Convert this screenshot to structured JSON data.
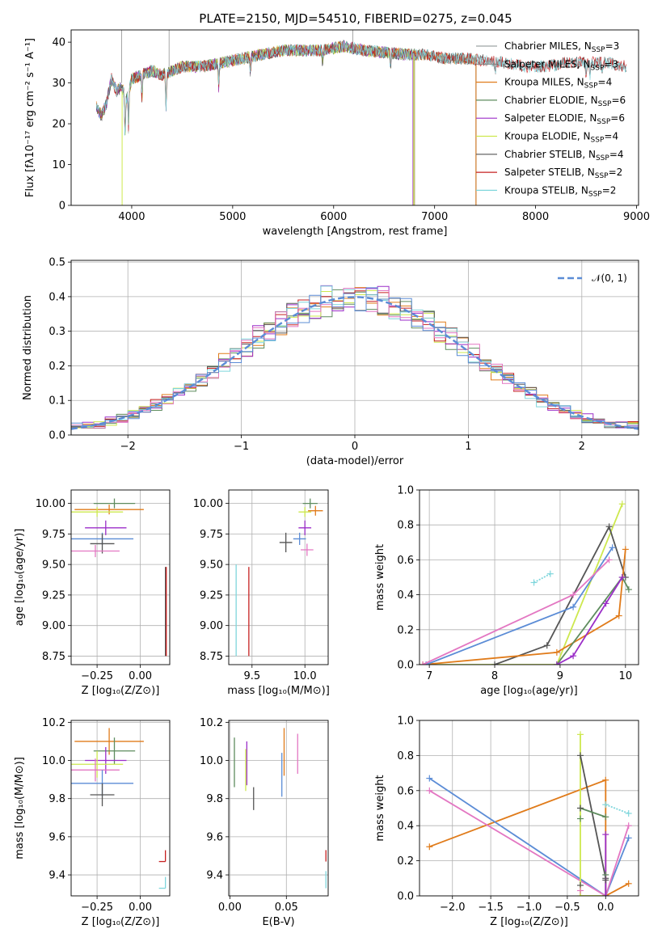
{
  "chart_data": [
    {
      "type": "line",
      "title": "PLATE=2150, MJD=54510, FIBERID=0275, z=0.045",
      "xlabel": "wavelength [Angstrom, rest frame]",
      "ylabel": "Flux [fλ10⁻¹⁷ erg cm⁻² s⁻¹ A⁻¹]",
      "xlim": [
        3400,
        9020
      ],
      "ylim": [
        0,
        43
      ],
      "xticks": [
        "4000",
        "5000",
        "6000",
        "7000",
        "8000",
        "9000"
      ],
      "yticks": [
        "0",
        "10",
        "20",
        "30",
        "40"
      ],
      "grid": false,
      "legend_position": "top-right",
      "continuum": {
        "x": [
          3650,
          3700,
          3750,
          3800,
          3850,
          3900,
          3950,
          4000,
          4100,
          4200,
          4300,
          4400,
          4500,
          4700,
          4900,
          5100,
          5300,
          5500,
          5700,
          5900,
          6100,
          6300,
          6500,
          6700,
          6900,
          7100,
          7300,
          7500,
          7700,
          7900,
          8100,
          8300,
          8500,
          8700,
          8900
        ],
        "y": [
          24,
          22,
          25,
          31,
          28,
          29,
          26,
          31,
          32,
          33,
          32,
          33,
          34,
          34,
          35,
          36,
          37,
          38,
          38,
          38,
          39,
          38,
          37.5,
          37,
          37,
          36,
          36,
          35.5,
          35,
          34,
          34,
          35,
          35,
          35,
          34
        ]
      },
      "series": [
        {
          "name": "Chabrier MILES, N_SSP=3",
          "color": "#9da5a3",
          "x_range": [
            3650,
            7410
          ]
        },
        {
          "name": "Salpeter MILES, N_SSP=3",
          "color": "#808080",
          "x_range": [
            3650,
            7410
          ]
        },
        {
          "name": "Kroupa MILES, N_SSP=4",
          "color": "#e07b1a",
          "x_range": [
            3650,
            7410
          ]
        },
        {
          "name": "Chabrier ELODIE, N_SSP=6",
          "color": "#5e8c5e",
          "x_range": [
            3650,
            6800
          ]
        },
        {
          "name": "Salpeter ELODIE, N_SSP=6",
          "color": "#9b2ec8",
          "x_range": [
            3650,
            6800
          ]
        },
        {
          "name": "Kroupa ELODIE, N_SSP=4",
          "color": "#cde84e",
          "x_range": [
            3900,
            6800
          ]
        },
        {
          "name": "Chabrier STELIB, N_SSP=4",
          "color": "#555555",
          "x_range": [
            3650,
            8900
          ]
        },
        {
          "name": "Salpeter STELIB, N_SSP=2",
          "color": "#c62020",
          "x_range": [
            3650,
            8900
          ]
        },
        {
          "name": "Kroupa STELIB, N_SSP=2",
          "color": "#7fd6dc",
          "x_range": [
            3650,
            8900
          ]
        }
      ]
    },
    {
      "type": "line",
      "title": "",
      "xlabel": "(data-model)/error",
      "ylabel": "Normed distribution",
      "xlim": [
        -2.5,
        2.5
      ],
      "ylim": [
        0,
        0.505
      ],
      "xticks": [
        "−2",
        "−1",
        "0",
        "1",
        "2"
      ],
      "yticks": [
        "0.0",
        "0.1",
        "0.2",
        "0.3",
        "0.4",
        "0.5"
      ],
      "grid": true,
      "legend_position": "top-right",
      "normal_curve": {
        "name": "𝒩(0, 1)",
        "color": "#5b8cd6",
        "mu": 0,
        "sigma": 1
      },
      "histogram_bin_width": 0.1,
      "histogram_colors": [
        "#e07b1a",
        "#5e8c5e",
        "#9b2ec8",
        "#cde84e",
        "#555555",
        "#c62020",
        "#7fd6dc",
        "#e377c2",
        "#5b8cd6"
      ]
    },
    {
      "type": "scatter",
      "xlabel": "Z [log₁₀(Z/Z⊙)]",
      "ylabel": "age  [log₁₀(age/yr)]",
      "xlim": [
        -0.4,
        0.17
      ],
      "ylim": [
        8.68,
        10.11
      ],
      "xticks": [
        "−0.25",
        "0.00"
      ],
      "yticks": [
        "8.75",
        "9.00",
        "9.25",
        "9.50",
        "9.75",
        "10.00"
      ],
      "points": [
        {
          "x": -0.15,
          "y": 10.0,
          "xerr": 0.12,
          "yerr": 0.04,
          "color": "#5e8c5e"
        },
        {
          "x": -0.18,
          "y": 9.95,
          "xerr": 0.2,
          "yerr": 0.04,
          "color": "#e07b1a"
        },
        {
          "x": -0.25,
          "y": 9.93,
          "xerr": 0.15,
          "yerr": 0.04,
          "color": "#cde84e"
        },
        {
          "x": -0.2,
          "y": 9.8,
          "xerr": 0.12,
          "yerr": 0.06,
          "color": "#9b2ec8"
        },
        {
          "x": -0.22,
          "y": 9.71,
          "xerr": 0.18,
          "yerr": 0.05,
          "color": "#5b8cd6"
        },
        {
          "x": -0.22,
          "y": 9.67,
          "xerr": 0.07,
          "yerr": 0.08,
          "color": "#555555"
        },
        {
          "x": -0.26,
          "y": 9.61,
          "xerr": 0.14,
          "yerr": 0.05,
          "color": "#e377c2"
        },
        {
          "x": 0.15,
          "y": 8.75,
          "xerr": 0.0,
          "yerr": 0.0,
          "color": "#7fd6dc"
        }
      ],
      "vlines": [
        {
          "x": 0.145,
          "y1": 8.75,
          "y2": 9.48,
          "color": "#555555"
        },
        {
          "x": 0.15,
          "y1": 8.75,
          "y2": 9.48,
          "color": "#c62020"
        }
      ]
    },
    {
      "type": "scatter",
      "xlabel": "mass [log₁₀(M/M⊙)]",
      "ylabel": "",
      "xlim": [
        9.28,
        10.22
      ],
      "ylim": [
        8.68,
        10.11
      ],
      "xticks": [
        "9.5",
        "10.0"
      ],
      "yticks": [
        "8.75",
        "9.00",
        "9.25",
        "9.50",
        "9.75",
        "10.00"
      ],
      "points": [
        {
          "x": 10.05,
          "y": 10.0,
          "xerr": 0.07,
          "yerr": 0.04,
          "color": "#5e8c5e"
        },
        {
          "x": 10.1,
          "y": 9.94,
          "xerr": 0.07,
          "yerr": 0.04,
          "color": "#e07b1a"
        },
        {
          "x": 10.0,
          "y": 9.93,
          "xerr": 0.06,
          "yerr": 0.04,
          "color": "#cde84e"
        },
        {
          "x": 10.0,
          "y": 9.8,
          "xerr": 0.06,
          "yerr": 0.06,
          "color": "#9b2ec8"
        },
        {
          "x": 9.95,
          "y": 9.71,
          "xerr": 0.06,
          "yerr": 0.05,
          "color": "#5b8cd6"
        },
        {
          "x": 9.82,
          "y": 9.68,
          "xerr": 0.06,
          "yerr": 0.08,
          "color": "#555555"
        },
        {
          "x": 10.02,
          "y": 9.62,
          "xerr": 0.06,
          "yerr": 0.05,
          "color": "#e377c2"
        }
      ],
      "vlines": [
        {
          "x": 9.35,
          "y1": 8.75,
          "y2": 9.5,
          "color": "#7fd6dc"
        },
        {
          "x": 9.47,
          "y1": 8.75,
          "y2": 9.48,
          "color": "#c62020"
        }
      ]
    },
    {
      "type": "line",
      "xlabel": "age  [log₁₀(age/yr)]",
      "ylabel": "mass weight",
      "xlim": [
        6.85,
        10.2
      ],
      "ylim": [
        0,
        1.0
      ],
      "xticks": [
        "7",
        "8",
        "9",
        "10"
      ],
      "yticks": [
        "0.0",
        "0.2",
        "0.4",
        "0.6",
        "0.8",
        "1.0"
      ],
      "grid": true,
      "series": [
        {
          "color": "#cde84e",
          "x": [
            6.9,
            8.95,
            9.95
          ],
          "y": [
            0.0,
            0.0,
            0.92
          ]
        },
        {
          "color": "#555555",
          "x": [
            8.0,
            8.8,
            9.75,
            10.0
          ],
          "y": [
            0.0,
            0.11,
            0.79,
            0.5
          ]
        },
        {
          "color": "#e07b1a",
          "x": [
            6.9,
            8.95,
            9.9,
            10.0
          ],
          "y": [
            0.0,
            0.07,
            0.28,
            0.66
          ]
        },
        {
          "color": "#5e8c5e",
          "x": [
            8.95,
            9.95,
            10.05
          ],
          "y": [
            0.0,
            0.5,
            0.43
          ]
        },
        {
          "color": "#9b2ec8",
          "x": [
            8.95,
            9.2,
            9.7,
            9.95
          ],
          "y": [
            0.0,
            0.05,
            0.35,
            0.5
          ]
        },
        {
          "color": "#5b8cd6",
          "x": [
            6.95,
            9.2,
            9.8
          ],
          "y": [
            0.0,
            0.33,
            0.67
          ]
        },
        {
          "color": "#e377c2",
          "x": [
            6.9,
            9.2,
            9.75
          ],
          "y": [
            0.0,
            0.4,
            0.6
          ]
        },
        {
          "color": "#7fd6dc",
          "x": [
            8.6,
            8.85
          ],
          "y": [
            0.47,
            0.52
          ]
        }
      ]
    },
    {
      "type": "scatter",
      "xlabel": "Z [log₁₀(Z/Z⊙)]",
      "ylabel": "mass [log₁₀(M/M⊙)]",
      "xlim": [
        -0.4,
        0.17
      ],
      "ylim": [
        9.29,
        10.21
      ],
      "xticks": [
        "−0.25",
        "0.00"
      ],
      "yticks": [
        "9.4",
        "9.6",
        "9.8",
        "10.0",
        "10.2"
      ],
      "points": [
        {
          "x": -0.18,
          "y": 10.1,
          "xerr": 0.2,
          "yerr": 0.07,
          "color": "#e07b1a"
        },
        {
          "x": -0.15,
          "y": 10.05,
          "xerr": 0.12,
          "yerr": 0.07,
          "color": "#5e8c5e"
        },
        {
          "x": -0.2,
          "y": 10.0,
          "xerr": 0.12,
          "yerr": 0.07,
          "color": "#9b2ec8"
        },
        {
          "x": -0.25,
          "y": 9.98,
          "xerr": 0.15,
          "yerr": 0.07,
          "color": "#cde84e"
        },
        {
          "x": -0.26,
          "y": 9.95,
          "xerr": 0.14,
          "yerr": 0.06,
          "color": "#e377c2"
        },
        {
          "x": -0.22,
          "y": 9.88,
          "xerr": 0.18,
          "yerr": 0.07,
          "color": "#5b8cd6"
        },
        {
          "x": -0.22,
          "y": 9.82,
          "xerr": 0.07,
          "yerr": 0.06,
          "color": "#555555"
        }
      ],
      "corner_marks": [
        {
          "x": 0.145,
          "y": 9.47,
          "color": "#c62020"
        },
        {
          "x": 0.145,
          "y": 9.33,
          "color": "#7fd6dc"
        }
      ]
    },
    {
      "type": "scatter",
      "xlabel": "E(B-V)",
      "ylabel": "",
      "xlim": [
        -0.001,
        0.087
      ],
      "ylim": [
        9.29,
        10.21
      ],
      "xticks": [
        "0.00",
        "0.05"
      ],
      "yticks": [
        "9.4",
        "9.6",
        "9.8",
        "10.0",
        "10.2"
      ],
      "vlines": [
        {
          "x": 0.004,
          "y1": 9.86,
          "y2": 10.12,
          "color": "#5e8c5e"
        },
        {
          "x": 0.015,
          "y1": 9.87,
          "y2": 10.1,
          "color": "#9b2ec8"
        },
        {
          "x": 0.014,
          "y1": 9.84,
          "y2": 10.06,
          "color": "#cde84e"
        },
        {
          "x": 0.021,
          "y1": 9.74,
          "y2": 9.86,
          "color": "#555555"
        },
        {
          "x": 0.046,
          "y1": 9.81,
          "y2": 10.04,
          "color": "#5b8cd6"
        },
        {
          "x": 0.048,
          "y1": 9.92,
          "y2": 10.17,
          "color": "#e07b1a"
        },
        {
          "x": 0.06,
          "y1": 9.93,
          "y2": 10.14,
          "color": "#e377c2"
        },
        {
          "x": 0.085,
          "y1": 9.47,
          "y2": 9.53,
          "color": "#c62020"
        },
        {
          "x": 0.085,
          "y1": 9.33,
          "y2": 9.42,
          "color": "#7fd6dc"
        }
      ]
    },
    {
      "type": "line",
      "xlabel": "Z [log₁₀(Z/Z⊙)]",
      "ylabel": "mass weight",
      "xlim": [
        -2.43,
        0.43
      ],
      "ylim": [
        0,
        1.0
      ],
      "xticks": [
        "−2.0",
        "−1.5",
        "−1.0",
        "−0.5",
        "0.0"
      ],
      "yticks": [
        "0.0",
        "0.2",
        "0.4",
        "0.6",
        "0.8",
        "1.0"
      ],
      "grid": true,
      "series": [
        {
          "color": "#e07b1a",
          "x": [
            -2.3,
            0.0,
            0.0,
            0.3
          ],
          "y": [
            0.28,
            0.66,
            0.0,
            0.07
          ]
        },
        {
          "color": "#5b8cd6",
          "x": [
            -2.3,
            0.0,
            0.3
          ],
          "y": [
            0.67,
            0.0,
            0.33
          ]
        },
        {
          "color": "#e377c2",
          "x": [
            -2.3,
            0.0,
            0.3
          ],
          "y": [
            0.6,
            0.0,
            0.4
          ]
        },
        {
          "color": "#cde84e",
          "x": [
            -0.33,
            -0.33,
            0.0
          ],
          "y": [
            0.92,
            0.0,
            0.0
          ]
        },
        {
          "color": "#555555",
          "x": [
            -0.33,
            0.0,
            0.0
          ],
          "y": [
            0.8,
            0.1,
            0.0
          ]
        },
        {
          "color": "#9b2ec8",
          "x": [
            0.0,
            0.0
          ],
          "y": [
            0.35,
            0.0
          ]
        },
        {
          "color": "#5e8c5e",
          "x": [
            -0.33,
            0.0
          ],
          "y": [
            0.5,
            0.45
          ]
        },
        {
          "color": "#7fd6dc",
          "x": [
            0.0,
            0.3
          ],
          "y": [
            0.52,
            0.47
          ]
        }
      ],
      "markers": [
        {
          "x": -0.33,
          "y": 0.5,
          "color": "#555555"
        },
        {
          "x": -0.33,
          "y": 0.44,
          "color": "#5e8c5e"
        },
        {
          "x": -0.33,
          "y": 0.06,
          "color": "#555555"
        },
        {
          "x": -0.33,
          "y": 0.03,
          "color": "#e377c2"
        },
        {
          "x": 0.0,
          "y": 0.12,
          "color": "#5e8c5e"
        },
        {
          "x": 0.0,
          "y": 0.09,
          "color": "#555555"
        }
      ]
    }
  ]
}
